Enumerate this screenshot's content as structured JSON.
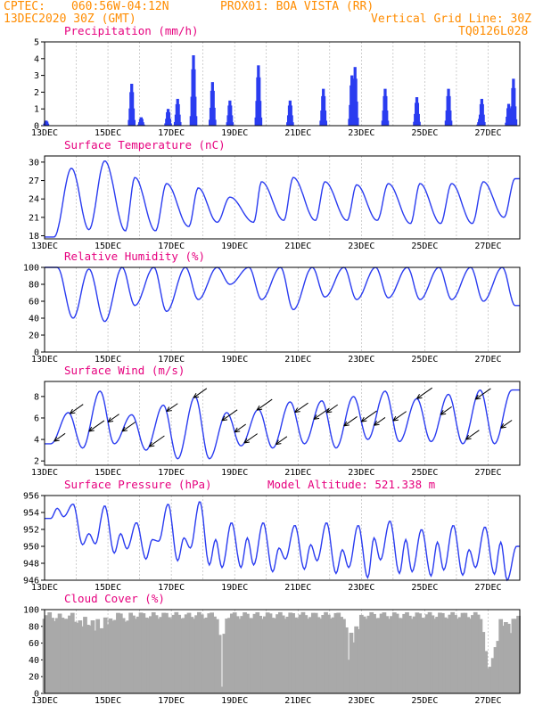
{
  "header": {
    "source": "CPTEC:",
    "coords": "060:56W-04:12N",
    "station": "PROX01: BOA VISTA (RR)",
    "date": "13DEC2020 30Z (GMT)",
    "grid_line": "Vertical Grid Line: 30Z",
    "code": "TQ0126L028"
  },
  "colors": {
    "header": "#ff8c00",
    "title": "#e6007e",
    "series": "#2a3cf0",
    "cloud": "#a9a9a9"
  },
  "chart_data": [
    {
      "type": "bar",
      "title": "Precipitation (mm/h)",
      "x_labels": [
        "13DEC",
        "15DEC",
        "17DEC",
        "19DEC",
        "21DEC",
        "23DEC",
        "25DEC",
        "27DEC"
      ],
      "ylim": [
        0,
        5
      ],
      "yticks": [
        0,
        1,
        2,
        3,
        4,
        5
      ],
      "events": [
        {
          "day": 13.05,
          "value": 0.3
        },
        {
          "day": 15.75,
          "value": 2.5
        },
        {
          "day": 16.05,
          "value": 0.5
        },
        {
          "day": 16.9,
          "value": 1.0
        },
        {
          "day": 17.2,
          "value": 1.6
        },
        {
          "day": 17.7,
          "value": 4.2
        },
        {
          "day": 18.3,
          "value": 2.6
        },
        {
          "day": 18.85,
          "value": 1.5
        },
        {
          "day": 19.75,
          "value": 3.6
        },
        {
          "day": 20.75,
          "value": 1.5
        },
        {
          "day": 21.8,
          "value": 2.2
        },
        {
          "day": 22.7,
          "value": 3.0
        },
        {
          "day": 22.8,
          "value": 3.5
        },
        {
          "day": 23.75,
          "value": 2.2
        },
        {
          "day": 24.75,
          "value": 1.7
        },
        {
          "day": 25.75,
          "value": 2.2
        },
        {
          "day": 26.75,
          "value": 0.5
        },
        {
          "day": 26.8,
          "value": 1.6
        },
        {
          "day": 27.65,
          "value": 1.3
        },
        {
          "day": 27.8,
          "value": 2.8
        }
      ]
    },
    {
      "type": "line",
      "title": "Surface Temperature (nC)",
      "x_labels": [
        "13DEC",
        "15DEC",
        "17DEC",
        "19DEC",
        "21DEC",
        "23DEC",
        "25DEC",
        "27DEC"
      ],
      "ylim": [
        17.5,
        31
      ],
      "yticks": [
        18,
        21,
        24,
        27,
        30
      ],
      "min_days": [
        13.3,
        14.4,
        15.55,
        16.5,
        17.55,
        18.45,
        19.6,
        20.55,
        21.55,
        22.55,
        23.5,
        24.55,
        25.5,
        26.5,
        27.5
      ],
      "min_vals": [
        17.8,
        19.0,
        18.8,
        18.8,
        19.5,
        20.2,
        20.2,
        20.5,
        20.5,
        20.5,
        20.5,
        20.0,
        20.0,
        20.0,
        21.0
      ],
      "max_days": [
        13.85,
        14.9,
        15.85,
        16.85,
        17.85,
        18.85,
        19.85,
        20.85,
        21.85,
        22.85,
        23.85,
        24.85,
        25.85,
        26.85,
        27.85
      ],
      "max_vals": [
        29.0,
        30.2,
        27.5,
        26.5,
        25.8,
        24.3,
        26.8,
        27.5,
        26.8,
        26.3,
        26.5,
        26.5,
        26.5,
        26.8,
        27.3
      ]
    },
    {
      "type": "line",
      "title": "Relative Humidity (%)",
      "x_labels": [
        "13DEC",
        "15DEC",
        "17DEC",
        "19DEC",
        "21DEC",
        "23DEC",
        "25DEC",
        "27DEC"
      ],
      "ylim": [
        0,
        100
      ],
      "yticks": [
        0,
        20,
        40,
        60,
        80,
        100
      ],
      "min_days": [
        13.9,
        14.9,
        15.85,
        16.85,
        17.85,
        18.85,
        19.85,
        20.85,
        21.85,
        22.85,
        23.85,
        24.85,
        25.85,
        26.85,
        27.85
      ],
      "min_vals": [
        40,
        36,
        55,
        48,
        62,
        80,
        62,
        50,
        65,
        62,
        64,
        62,
        62,
        60,
        55
      ],
      "max_days": [
        13.4,
        14.4,
        15.45,
        16.45,
        17.45,
        18.45,
        19.45,
        20.45,
        21.45,
        22.45,
        23.45,
        24.45,
        25.45,
        26.45,
        27.45
      ],
      "max_vals": [
        100,
        98,
        100,
        100,
        100,
        100,
        100,
        100,
        100,
        100,
        100,
        100,
        100,
        100,
        100
      ]
    },
    {
      "type": "line",
      "title": "Surface Wind (m/s)",
      "x_labels": [
        "13DEC",
        "15DEC",
        "17DEC",
        "19DEC",
        "21DEC",
        "23DEC",
        "25DEC",
        "27DEC"
      ],
      "ylim": [
        1.6,
        9.4
      ],
      "yticks": [
        2,
        4,
        6,
        8
      ],
      "min_days": [
        13.2,
        14.2,
        15.2,
        16.2,
        17.2,
        18.2,
        19.2,
        20.2,
        21.2,
        22.2,
        23.2,
        24.2,
        25.2,
        26.2,
        27.2
      ],
      "min_vals": [
        3.6,
        3.2,
        3.6,
        3.0,
        2.2,
        2.2,
        3.4,
        3.2,
        3.6,
        3.2,
        4.0,
        3.8,
        3.8,
        3.6,
        3.6
      ],
      "max_days": [
        13.75,
        14.75,
        15.75,
        16.75,
        17.75,
        18.75,
        19.75,
        20.75,
        21.75,
        22.75,
        23.75,
        24.75,
        25.75,
        26.75,
        27.75
      ],
      "max_vals": [
        6.5,
        8.5,
        6.3,
        7.2,
        8.0,
        6.5,
        6.8,
        7.5,
        7.6,
        8.0,
        8.5,
        7.8,
        8.2,
        8.6,
        8.6
      ],
      "arrow_days": [
        13.3,
        13.8,
        14.4,
        15.0,
        15.45,
        16.3,
        16.85,
        17.7,
        18.6,
        19.0,
        19.3,
        19.7,
        20.3,
        20.9,
        21.5,
        21.9,
        22.45,
        23.0,
        23.4,
        24.0,
        24.75,
        25.5,
        26.3,
        26.6,
        27.4
      ]
    },
    {
      "type": "line",
      "title": "Surface Pressure (hPa)",
      "annotation": "Model Altitude: 521.338 m",
      "x_labels": [
        "13DEC",
        "15DEC",
        "17DEC",
        "19DEC",
        "21DEC",
        "23DEC",
        "25DEC",
        "27DEC"
      ],
      "ylim": [
        946,
        956
      ],
      "yticks": [
        946,
        948,
        950,
        952,
        954,
        956
      ],
      "min_days": [
        13.2,
        13.6,
        14.2,
        14.6,
        15.2,
        15.6,
        16.2,
        16.6,
        17.2,
        17.6,
        18.2,
        18.6,
        19.2,
        19.6,
        20.2,
        20.6,
        21.2,
        21.6,
        22.2,
        22.6,
        23.2,
        23.6,
        24.2,
        24.6,
        25.2,
        25.6,
        26.2,
        26.6,
        27.2,
        27.6
      ],
      "min_vals": [
        953.3,
        953.5,
        950.2,
        950.3,
        949.2,
        949.7,
        948.5,
        950.6,
        948.3,
        949.8,
        947.8,
        947.5,
        947.5,
        947.8,
        947.0,
        948.5,
        947.3,
        948.3,
        946.8,
        947.5,
        946.3,
        948.4,
        946.8,
        947.0,
        946.5,
        947.2,
        946.6,
        947.5,
        946.7,
        946.0
      ],
      "max_days": [
        13.4,
        13.9,
        14.4,
        14.9,
        15.4,
        15.9,
        16.4,
        16.9,
        17.4,
        17.9,
        18.4,
        18.9,
        19.4,
        19.9,
        20.4,
        20.9,
        21.4,
        21.9,
        22.4,
        22.9,
        23.4,
        23.9,
        24.4,
        24.9,
        25.4,
        25.9,
        26.4,
        26.9,
        27.4,
        27.9
      ],
      "max_vals": [
        954.5,
        955.0,
        951.5,
        954.8,
        951.5,
        952.8,
        950.8,
        955.0,
        951.0,
        955.3,
        950.8,
        952.8,
        951.0,
        952.8,
        949.8,
        952.5,
        950.2,
        952.8,
        949.6,
        952.5,
        951.0,
        953.0,
        950.8,
        952.0,
        950.5,
        952.5,
        949.6,
        952.3,
        950.5,
        950.0
      ]
    },
    {
      "type": "bar",
      "title": "Cloud Cover (%)",
      "x_labels": [
        "13DEC",
        "15DEC",
        "17DEC",
        "19DEC",
        "21DEC",
        "23DEC",
        "25DEC",
        "27DEC"
      ],
      "ylim": [
        0,
        100
      ],
      "yticks": [
        0,
        20,
        40,
        60,
        80,
        100
      ],
      "baseline": 95,
      "dips": [
        {
          "day": 13.3,
          "value": 86
        },
        {
          "day": 13.6,
          "value": 88
        },
        {
          "day": 14.0,
          "value": 82
        },
        {
          "day": 14.2,
          "value": 80
        },
        {
          "day": 14.4,
          "value": 78
        },
        {
          "day": 14.6,
          "value": 75
        },
        {
          "day": 14.8,
          "value": 73
        },
        {
          "day": 15.0,
          "value": 82
        },
        {
          "day": 15.2,
          "value": 86
        },
        {
          "day": 15.6,
          "value": 84
        },
        {
          "day": 16.3,
          "value": 90
        },
        {
          "day": 17.4,
          "value": 90
        },
        {
          "day": 18.6,
          "value": 8
        },
        {
          "day": 22.6,
          "value": 40
        },
        {
          "day": 22.75,
          "value": 60
        },
        {
          "day": 22.9,
          "value": 75
        },
        {
          "day": 26.9,
          "value": 55
        },
        {
          "day": 27.0,
          "value": 30
        },
        {
          "day": 27.1,
          "value": 28
        },
        {
          "day": 27.2,
          "value": 35
        },
        {
          "day": 27.3,
          "value": 60
        },
        {
          "day": 27.5,
          "value": 80
        },
        {
          "day": 27.7,
          "value": 70
        }
      ]
    }
  ]
}
